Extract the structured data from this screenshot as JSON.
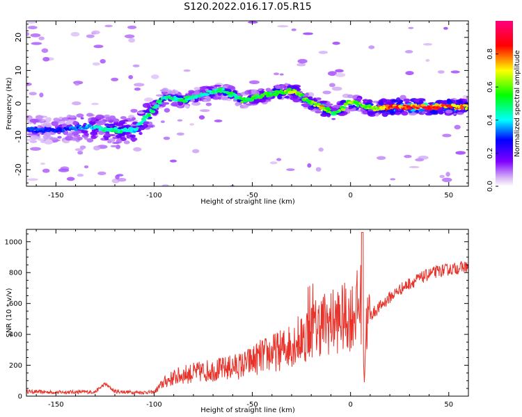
{
  "title": "S120.2022.016.17.05.R15",
  "chart_data": [
    {
      "type": "heatmap",
      "xlabel": "Height of straight line (km)",
      "ylabel": "Frequency (Hz)",
      "xlim": [
        -165,
        60
      ],
      "ylim": [
        -25,
        25
      ],
      "xticks": [
        "-150",
        "-100",
        "-50",
        "0",
        "50"
      ],
      "yticks": [
        "-20",
        "-10",
        "0",
        "10",
        "20"
      ],
      "colorbar": {
        "label": "Normalized spectral amplitude",
        "range": [
          0,
          1
        ],
        "ticks": [
          "0.0",
          "0.2",
          "0.4",
          "0.6",
          "0.8"
        ],
        "colormap": "rainbow"
      },
      "ridge": [
        {
          "x": -165,
          "y": -8,
          "amp": 0.35
        },
        {
          "x": -150,
          "y": -8,
          "amp": 0.3
        },
        {
          "x": -135,
          "y": -7,
          "amp": 0.4
        },
        {
          "x": -122,
          "y": -8,
          "amp": 0.55
        },
        {
          "x": -110,
          "y": -8,
          "amp": 0.45
        },
        {
          "x": -100,
          "y": -1.5,
          "amp": 0.6
        },
        {
          "x": -95,
          "y": 2,
          "amp": 0.5
        },
        {
          "x": -85,
          "y": 1,
          "amp": 0.55
        },
        {
          "x": -75,
          "y": 3,
          "amp": 0.5
        },
        {
          "x": -65,
          "y": 4,
          "amp": 0.55
        },
        {
          "x": -55,
          "y": 1,
          "amp": 0.6
        },
        {
          "x": -40,
          "y": 3,
          "amp": 0.6
        },
        {
          "x": -30,
          "y": 4,
          "amp": 0.75
        },
        {
          "x": -22,
          "y": 1,
          "amp": 0.65
        },
        {
          "x": -15,
          "y": -1,
          "amp": 0.8
        },
        {
          "x": -8,
          "y": -3,
          "amp": 0.6
        },
        {
          "x": 0,
          "y": 0.5,
          "amp": 0.7
        },
        {
          "x": 5,
          "y": -0.5,
          "amp": 0.65
        },
        {
          "x": 12,
          "y": -1.5,
          "amp": 0.7
        },
        {
          "x": 20,
          "y": -1,
          "amp": 0.95
        },
        {
          "x": 40,
          "y": -1,
          "amp": 0.95
        },
        {
          "x": 58,
          "y": -1,
          "amp": 0.85
        }
      ]
    },
    {
      "type": "line",
      "xlabel": "Height of straight line (km)",
      "ylabel": "SNR (10 * v/v)",
      "xlim": [
        -165,
        60
      ],
      "ylim": [
        0,
        1080
      ],
      "xticks": [
        "-150",
        "-100",
        "-50",
        "0",
        "50"
      ],
      "yticks": [
        "0",
        "200",
        "400",
        "600",
        "800",
        "1000"
      ],
      "color": "#e8322a",
      "series": [
        {
          "x": [
            -165,
            -150,
            -130,
            -125,
            -120,
            -110,
            -100,
            -95,
            -90,
            -85,
            -80,
            -75,
            -70,
            -65,
            -60,
            -55,
            -50,
            -45,
            -40,
            -35,
            -30,
            -25,
            -20,
            -15,
            -10,
            -5,
            0,
            3,
            6,
            7,
            8,
            10,
            15,
            20,
            25,
            30,
            35,
            40,
            45,
            50,
            55,
            60
          ],
          "values": [
            30,
            25,
            28,
            80,
            30,
            25,
            25,
            90,
            120,
            140,
            150,
            160,
            170,
            175,
            190,
            200,
            230,
            260,
            280,
            300,
            340,
            380,
            420,
            470,
            480,
            500,
            520,
            560,
            620,
            110,
            460,
            520,
            580,
            640,
            690,
            730,
            760,
            790,
            810,
            820,
            830,
            840
          ]
        }
      ]
    }
  ]
}
